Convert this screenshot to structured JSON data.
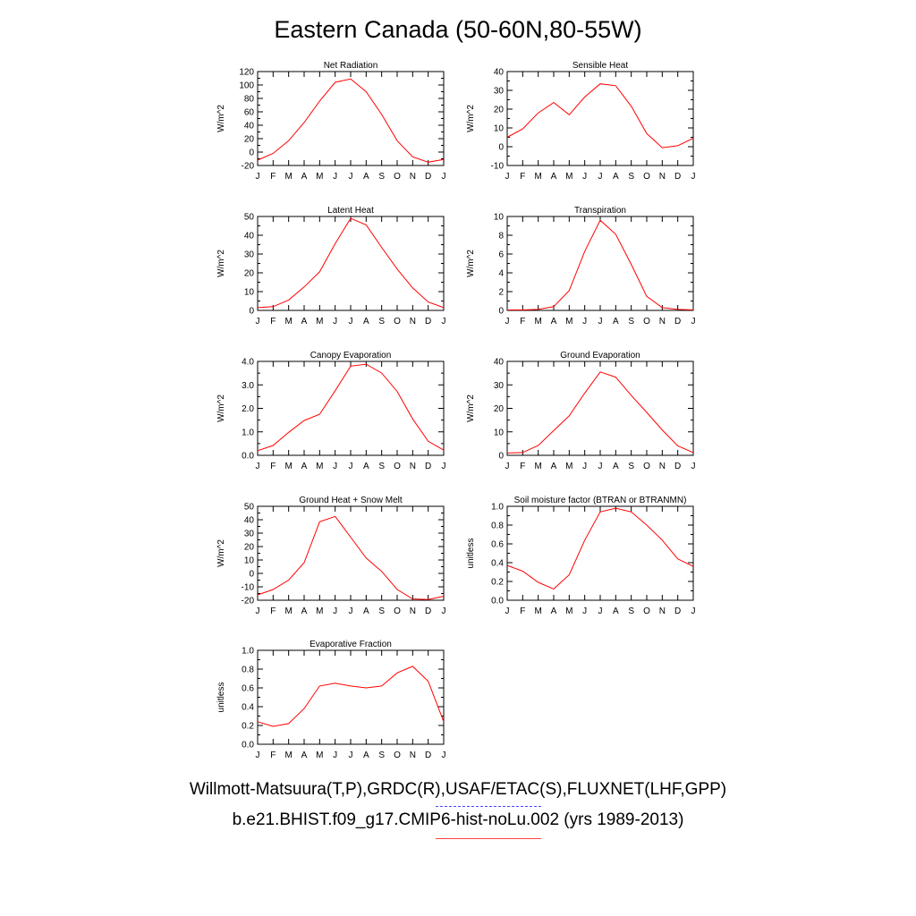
{
  "title": "Eastern Canada (50-60N,80-55W)",
  "legend": {
    "observed": "Willmott-Matsuura(T,P),GRDC(R),USAF/ETAC(S),FLUXNET(LHF,GPP)",
    "observed_color": "#4444ff",
    "model": "b.e21.BHIST.f09_g17.CMIP6-hist-noLu.002 (yrs 1989-2013)",
    "model_color": "#ff0000"
  },
  "chart_data": [
    {
      "type": "line",
      "title": "Net Radiation",
      "ylabel": "W/m^2",
      "categories": [
        "J",
        "F",
        "M",
        "A",
        "M",
        "J",
        "J",
        "A",
        "S",
        "O",
        "N",
        "D",
        "J"
      ],
      "yticks": [
        "120",
        "100",
        "80",
        "60",
        "40",
        "20",
        "0",
        "-20"
      ],
      "ylim": [
        -20,
        120
      ],
      "series": [
        {
          "values": [
            -12,
            -2,
            17,
            44,
            76,
            104,
            109,
            90,
            56,
            17,
            -7,
            -15,
            -11
          ],
          "color": "#ff0000"
        }
      ]
    },
    {
      "type": "line",
      "title": "Sensible Heat",
      "ylabel": "W/m^2",
      "categories": [
        "J",
        "F",
        "M",
        "A",
        "M",
        "J",
        "J",
        "A",
        "S",
        "O",
        "N",
        "D",
        "J"
      ],
      "yticks": [
        "40",
        "30",
        "20",
        "10",
        "0",
        "-10"
      ],
      "ylim": [
        -10,
        40
      ],
      "series": [
        {
          "values": [
            5,
            9.5,
            18,
            23.5,
            17,
            26.5,
            33.5,
            32.5,
            21.5,
            7,
            -0.5,
            0.5,
            4.5
          ],
          "color": "#ff0000"
        }
      ]
    },
    {
      "type": "line",
      "title": "Latent Heat",
      "ylabel": "W/m^2",
      "categories": [
        "J",
        "F",
        "M",
        "A",
        "M",
        "J",
        "J",
        "A",
        "S",
        "O",
        "N",
        "D",
        "J"
      ],
      "yticks": [
        "50",
        "40",
        "30",
        "20",
        "10",
        "0"
      ],
      "ylim": [
        0,
        50
      ],
      "series": [
        {
          "values": [
            1.5,
            2,
            5.5,
            12.5,
            20.5,
            35.5,
            49,
            45.5,
            33.5,
            22,
            12,
            4.5,
            1.5
          ],
          "color": "#ff0000"
        }
      ]
    },
    {
      "type": "line",
      "title": "Transpiration",
      "ylabel": "W/m^2",
      "categories": [
        "J",
        "F",
        "M",
        "A",
        "M",
        "J",
        "J",
        "A",
        "S",
        "O",
        "N",
        "D",
        "J"
      ],
      "yticks": [
        "10",
        "8",
        "6",
        "4",
        "2",
        "0"
      ],
      "ylim": [
        0,
        10
      ],
      "series": [
        {
          "values": [
            0.05,
            0.05,
            0.1,
            0.4,
            2.1,
            6.3,
            9.6,
            8.1,
            4.9,
            1.5,
            0.3,
            0.1,
            0.05
          ],
          "color": "#ff0000"
        }
      ]
    },
    {
      "type": "line",
      "title": "Canopy Evaporation",
      "ylabel": "W/m^2",
      "categories": [
        "J",
        "F",
        "M",
        "A",
        "M",
        "J",
        "J",
        "A",
        "S",
        "O",
        "N",
        "D",
        "J"
      ],
      "yticks": [
        "4.0",
        "3.0",
        "2.0",
        "1.0",
        "0.0"
      ],
      "ylim": [
        0,
        4
      ],
      "series": [
        {
          "values": [
            0.2,
            0.42,
            0.98,
            1.48,
            1.75,
            2.75,
            3.8,
            3.88,
            3.5,
            2.72,
            1.55,
            0.6,
            0.22
          ],
          "color": "#ff0000"
        }
      ]
    },
    {
      "type": "line",
      "title": "Ground Evaporation",
      "ylabel": "W/m^2",
      "categories": [
        "J",
        "F",
        "M",
        "A",
        "M",
        "J",
        "J",
        "A",
        "S",
        "O",
        "N",
        "D",
        "J"
      ],
      "yticks": [
        "40",
        "30",
        "20",
        "10",
        "0"
      ],
      "ylim": [
        0,
        40
      ],
      "series": [
        {
          "values": [
            1,
            1.2,
            4.2,
            10.5,
            16.8,
            26.5,
            35.5,
            33.3,
            25.5,
            18.3,
            10.8,
            4,
            1.2
          ],
          "color": "#ff0000"
        }
      ]
    },
    {
      "type": "line",
      "title": "Ground Heat + Snow Melt",
      "ylabel": "W/m^2",
      "categories": [
        "J",
        "F",
        "M",
        "A",
        "M",
        "J",
        "J",
        "A",
        "S",
        "O",
        "N",
        "D",
        "J"
      ],
      "yticks": [
        "50",
        "40",
        "30",
        "20",
        "10",
        "0",
        "-10",
        "-20"
      ],
      "ylim": [
        -20,
        50
      ],
      "series": [
        {
          "values": [
            -16,
            -12,
            -5,
            8,
            38.5,
            42.5,
            27,
            11.5,
            1.5,
            -12,
            -19,
            -19.5,
            -17
          ],
          "color": "#ff0000"
        }
      ]
    },
    {
      "type": "line",
      "title": "Soil moisture factor (BTRAN or BTRANMN)",
      "ylabel": "unitless",
      "categories": [
        "J",
        "F",
        "M",
        "A",
        "M",
        "J",
        "J",
        "A",
        "S",
        "O",
        "N",
        "D",
        "J"
      ],
      "yticks": [
        "1.0",
        "0.8",
        "0.6",
        "0.4",
        "0.2",
        "0.0"
      ],
      "ylim": [
        0,
        1
      ],
      "series": [
        {
          "values": [
            0.37,
            0.31,
            0.19,
            0.12,
            0.27,
            0.64,
            0.94,
            0.98,
            0.94,
            0.8,
            0.64,
            0.44,
            0.36
          ],
          "color": "#ff0000"
        }
      ]
    },
    {
      "type": "line",
      "title": "Evaporative Fraction",
      "ylabel": "unitless",
      "categories": [
        "J",
        "F",
        "M",
        "A",
        "M",
        "J",
        "J",
        "A",
        "S",
        "O",
        "N",
        "D",
        "J"
      ],
      "yticks": [
        "1.0",
        "0.8",
        "0.6",
        "0.4",
        "0.2",
        "0.0"
      ],
      "ylim": [
        0,
        1
      ],
      "series": [
        {
          "values": [
            0.24,
            0.19,
            0.22,
            0.38,
            0.62,
            0.65,
            0.62,
            0.6,
            0.62,
            0.76,
            0.83,
            0.67,
            0.24
          ],
          "color": "#ff0000"
        }
      ]
    }
  ]
}
